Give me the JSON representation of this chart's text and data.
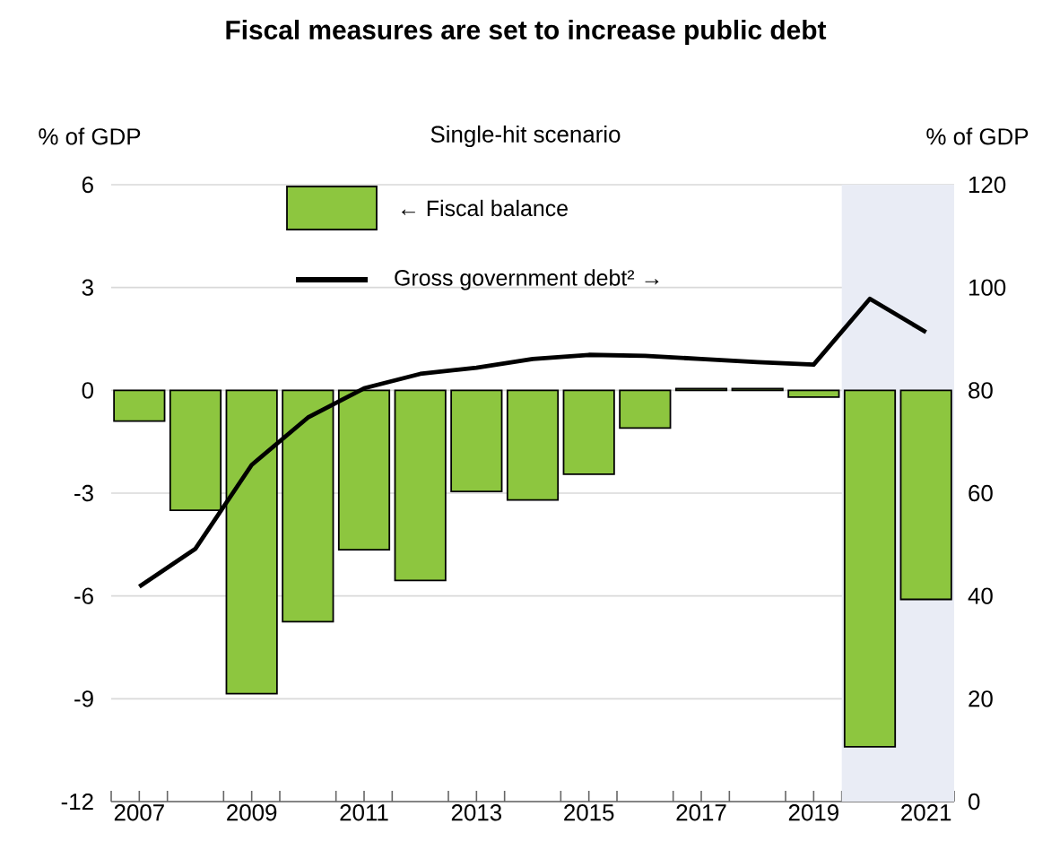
{
  "chart_data": {
    "type": "bar",
    "title": "Fiscal measures are set to increase public debt",
    "subtitle": "Single-hit scenario",
    "ylabel": "% of GDP",
    "y2label": "% of GDP",
    "x": [
      2007,
      2008,
      2009,
      2010,
      2011,
      2012,
      2013,
      2014,
      2015,
      2016,
      2017,
      2018,
      2019,
      2020,
      2021
    ],
    "series": [
      {
        "name": "← Fiscal balance",
        "color": "#8dc63f",
        "values": [
          -0.9,
          -3.5,
          -8.85,
          -6.75,
          -4.65,
          -5.55,
          -2.95,
          -3.2,
          -2.45,
          -1.1,
          0.05,
          0.05,
          -0.2,
          -10.4,
          -6.1
        ]
      },
      {
        "name": "Gross government debt² →",
        "type": "line",
        "axis": "y2",
        "color": "#000000",
        "values": [
          41.8,
          49.2,
          65.5,
          74.7,
          80.4,
          83.2,
          84.4,
          86.1,
          86.9,
          86.7,
          86.1,
          85.5,
          85.0,
          97.8,
          91.3
        ]
      }
    ],
    "xlim": [
      2006.5,
      2021.5
    ],
    "xticks": [
      2007,
      2009,
      2011,
      2013,
      2015,
      2017,
      2019,
      2021,
      {
        "value": 2006.5,
        "label": null
      },
      {
        "value": 2007.5,
        "label": null
      },
      {
        "value": 2008.5,
        "label": null
      },
      {
        "value": 2009.5,
        "label": null
      },
      {
        "value": 2010.5,
        "label": null
      },
      {
        "value": 2011.5,
        "label": null
      },
      {
        "value": 2012.5,
        "label": null
      },
      {
        "value": 2013.5,
        "label": null
      },
      {
        "value": 2014.5,
        "label": null
      },
      {
        "value": 2015.5,
        "label": null
      },
      {
        "value": 2016.5,
        "label": null
      },
      {
        "value": 2017.5,
        "label": null
      },
      {
        "value": 2018.5,
        "label": null
      },
      {
        "value": 2019.5,
        "label": null
      },
      {
        "value": 2020.5,
        "label": null
      },
      {
        "value": 2021.5,
        "label": null
      }
    ],
    "ylim": [
      -12,
      6
    ],
    "yticks": [
      -12,
      -9,
      -6,
      -3,
      0,
      3,
      6
    ],
    "y2lim": [
      0,
      120
    ],
    "y2ticks": [
      0,
      20,
      40,
      60,
      80,
      100,
      120
    ],
    "bands": [
      {
        "axis": "x",
        "from": 2019.5,
        "to": 2021.5,
        "color": "#e9ecf5"
      }
    ],
    "grid": "y",
    "legend": "top"
  }
}
